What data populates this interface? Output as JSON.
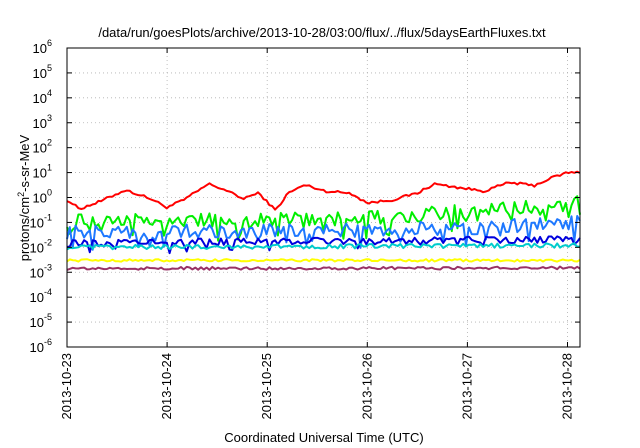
{
  "chart_data": {
    "type": "line",
    "title": "/data/run/goesPlots/archive/2013-10-28/03:00/flux/../flux/5daysEarthFluxes.txt",
    "xlabel": "Coordinated Universal Time (UTC)",
    "ylabel": {
      "prefix": "protons/cm",
      "sup": "2",
      "suffix": "-s-sr-MeV"
    },
    "y_scale": "log",
    "ylim": [
      1e-06,
      1000000.0
    ],
    "y_ticks": [
      {
        "value": 1e-06,
        "base": "10",
        "exp": "-6"
      },
      {
        "value": 1e-05,
        "base": "10",
        "exp": "-5"
      },
      {
        "value": 0.0001,
        "base": "10",
        "exp": "-4"
      },
      {
        "value": 0.001,
        "base": "10",
        "exp": "-3"
      },
      {
        "value": 0.01,
        "base": "10",
        "exp": "-2"
      },
      {
        "value": 0.1,
        "base": "10",
        "exp": "-1"
      },
      {
        "value": 1,
        "base": "10",
        "exp": "0"
      },
      {
        "value": 10.0,
        "base": "10",
        "exp": "1"
      },
      {
        "value": 100.0,
        "base": "10",
        "exp": "2"
      },
      {
        "value": 1000.0,
        "base": "10",
        "exp": "3"
      },
      {
        "value": 10000.0,
        "base": "10",
        "exp": "4"
      },
      {
        "value": 100000.0,
        "base": "10",
        "exp": "5"
      },
      {
        "value": 1000000.0,
        "base": "10",
        "exp": "6"
      }
    ],
    "xlim": [
      "2013-10-23 00:00",
      "2013-10-28 03:00"
    ],
    "x_ticks": [
      "2013-10-23",
      "2013-10-24",
      "2013-10-25",
      "2013-10-26",
      "2013-10-27",
      "2013-10-28"
    ],
    "grid": true,
    "legend": "none",
    "series": [
      {
        "color": "#ff0000",
        "noise": 0.05,
        "x": [
          "2013-10-23 00:00",
          "2013-10-23 03:00",
          "2013-10-23 08:00",
          "2013-10-23 14:00",
          "2013-10-23 20:00",
          "2013-10-24 00:00",
          "2013-10-24 04:00",
          "2013-10-24 10:00",
          "2013-10-24 14:00",
          "2013-10-24 18:00",
          "2013-10-24 22:00",
          "2013-10-25 02:00",
          "2013-10-25 05:00",
          "2013-10-25 09:00",
          "2013-10-25 14:00",
          "2013-10-25 20:00",
          "2013-10-26 00:00",
          "2013-10-26 06:00",
          "2013-10-26 12:00",
          "2013-10-26 16:00",
          "2013-10-26 22:00",
          "2013-10-27 04:00",
          "2013-10-27 10:00",
          "2013-10-27 16:00",
          "2013-10-27 20:00",
          "2013-10-28 00:00",
          "2013-10-28 03:00"
        ],
        "y": [
          0.8,
          0.35,
          0.7,
          2.0,
          0.9,
          0.4,
          0.8,
          3.5,
          2.0,
          0.9,
          1.5,
          0.3,
          1.5,
          3.2,
          1.8,
          1.5,
          0.6,
          0.8,
          1.5,
          3.5,
          2.5,
          1.8,
          4.0,
          3.0,
          6.0,
          10,
          10
        ]
      },
      {
        "color": "#00ee00",
        "noise": 0.28,
        "x": [
          "2013-10-23 00:00",
          "2013-10-24 00:00",
          "2013-10-25 00:00",
          "2013-10-25 18:00",
          "2013-10-26 12:00",
          "2013-10-27 00:00",
          "2013-10-27 12:00",
          "2013-10-27 20:00",
          "2013-10-28 03:00"
        ],
        "y": [
          0.12,
          0.12,
          0.13,
          0.14,
          0.2,
          0.3,
          0.4,
          0.5,
          0.9
        ]
      },
      {
        "color": "#1e78ff",
        "noise": 0.28,
        "x": [
          "2013-10-23 00:00",
          "2013-10-24 00:00",
          "2013-10-25 00:00",
          "2013-10-26 00:00",
          "2013-10-27 00:00",
          "2013-10-28 03:00"
        ],
        "y": [
          0.04,
          0.045,
          0.045,
          0.05,
          0.06,
          0.1
        ]
      },
      {
        "color": "#0000dd",
        "noise": 0.14,
        "x": [
          "2013-10-23 00:00",
          "2013-10-24 00:00",
          "2013-10-25 00:00",
          "2013-10-26 00:00",
          "2013-10-27 00:00",
          "2013-10-28 03:00"
        ],
        "y": [
          0.014,
          0.016,
          0.017,
          0.018,
          0.02,
          0.02
        ]
      },
      {
        "color": "#00cccc",
        "noise": 0.09,
        "x": [
          "2013-10-23 00:00",
          "2013-10-28 03:00"
        ],
        "y": [
          0.01,
          0.012
        ]
      },
      {
        "color": "#ffff00",
        "noise": 0.05,
        "x": [
          "2013-10-23 00:00",
          "2013-10-28 03:00"
        ],
        "y": [
          0.003,
          0.003
        ]
      },
      {
        "color": "#993366",
        "noise": 0.06,
        "x": [
          "2013-10-23 00:00",
          "2013-10-28 03:00"
        ],
        "y": [
          0.0014,
          0.0015
        ]
      }
    ]
  }
}
